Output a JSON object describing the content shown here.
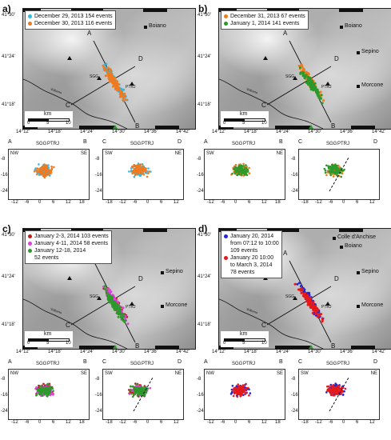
{
  "panels": [
    {
      "label": "a)",
      "legend": [
        {
          "text": "December 29, 2013   154 events",
          "color": "#35b7e6"
        },
        {
          "text": "December 30, 2013   116 events",
          "color": "#f07a1e"
        }
      ],
      "towns": [
        "Boiano"
      ],
      "sections": [
        {
          "left_end": "A",
          "right_end": "B",
          "left_dir": "NW",
          "right_dir": "SE"
        },
        {
          "left_end": "C",
          "right_end": "D",
          "left_dir": "SW",
          "right_dir": "NE"
        }
      ]
    },
    {
      "label": "b)",
      "legend": [
        {
          "text": "December 31, 2013    67 events",
          "color": "#f07a1e"
        },
        {
          "text": "January 1, 2014     141 events",
          "color": "#2b9a2b"
        }
      ],
      "towns": [
        "Boiano",
        "Sepino",
        "Morcone"
      ],
      "sections": [
        {
          "left_end": "A",
          "right_end": "B",
          "left_dir": "SW",
          "right_dir": "NE"
        },
        {
          "left_end": "C",
          "right_end": "D",
          "left_dir": "",
          "right_dir": ""
        }
      ]
    },
    {
      "label": "c)",
      "legend": [
        {
          "text": "January 2-3, 2014   103 events",
          "color": "#c01a1a"
        },
        {
          "text": "January 4-11, 2014   58 events",
          "color": "#e040e0"
        },
        {
          "text": "January 12-18, 2014",
          "color": "#2b9a2b"
        },
        {
          "text": "52 events",
          "color": ""
        }
      ],
      "towns": [
        "Sepino",
        "Morcone"
      ],
      "sections": [
        {
          "left_end": "A",
          "right_end": "B",
          "left_dir": "NW",
          "right_dir": "SE"
        },
        {
          "left_end": "C",
          "right_end": "D",
          "left_dir": "SW",
          "right_dir": "NE"
        }
      ]
    },
    {
      "label": "d)",
      "legend": [
        {
          "text": "January 20, 2014",
          "color": "#2424d8"
        },
        {
          "text": "from 07:12 to 10:00",
          "color": ""
        },
        {
          "text": "109 events",
          "color": ""
        },
        {
          "text": "January 20  10:00",
          "color": "#e51a1a"
        },
        {
          "text": "to March 3, 2014",
          "color": ""
        },
        {
          "text": "78 events",
          "color": ""
        }
      ],
      "towns": [
        "Colle d'Anchise",
        "Boiano",
        "Sepino",
        "Morcone"
      ],
      "sections": [
        {
          "left_end": "A",
          "right_end": "B",
          "left_dir": "NW",
          "right_dir": "SE"
        },
        {
          "left_end": "C",
          "right_end": "D",
          "left_dir": "SW",
          "right_dir": "NE"
        }
      ]
    }
  ],
  "map_common": {
    "lat_ticks": [
      "41°30'",
      "41°24'",
      "41°18'"
    ],
    "lon_ticks": [
      "14°12'",
      "14°18'",
      "14°24'",
      "14°30'",
      "14°36'",
      "14°42'"
    ],
    "scale_unit": "km",
    "scale_ticks": [
      "0",
      "5",
      "10"
    ],
    "station_labels": [
      "SGG",
      "PTRJ"
    ],
    "river": "Volturno",
    "profile_labels": [
      "A",
      "B",
      "C",
      "D"
    ]
  },
  "section_common": {
    "x_ticks_ab": [
      "-12",
      "-6",
      "0",
      "6",
      "12",
      "18"
    ],
    "x_ticks_cd": [
      "-18",
      "-12",
      "-6",
      "0",
      "6",
      "12"
    ],
    "y_ticks": [
      "-8",
      "-16",
      "-24"
    ],
    "station_labels": [
      "SGG",
      "PTRJ"
    ]
  }
}
